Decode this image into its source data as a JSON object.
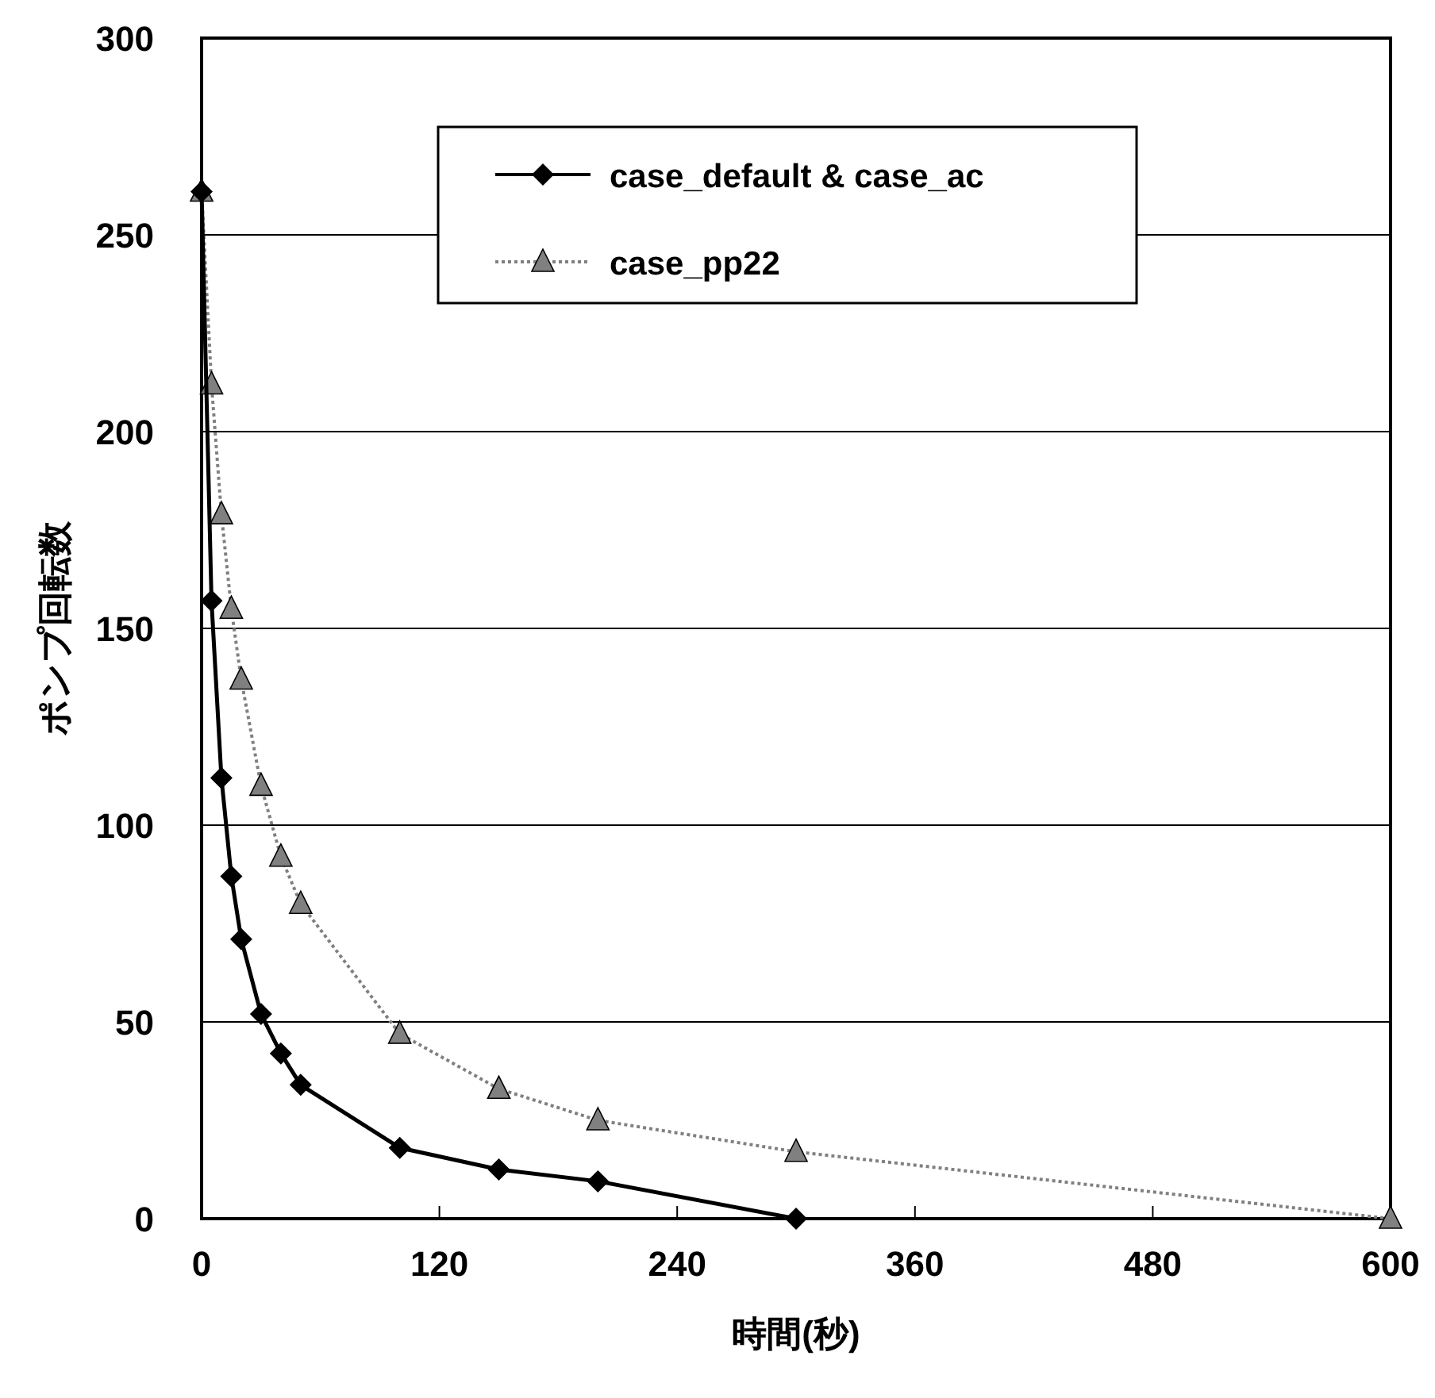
{
  "chart_data": {
    "type": "line",
    "xlabel": "時間(秒)",
    "ylabel": "ポンプ回転数",
    "xlim": [
      0,
      600
    ],
    "xticks": [
      0,
      120,
      240,
      360,
      480,
      600
    ],
    "ylim": [
      0,
      300
    ],
    "yticks": [
      0,
      50,
      100,
      150,
      200,
      250,
      300
    ],
    "grid": "y",
    "legend": "top",
    "series": [
      {
        "name": "case_default & case_ac",
        "color": "#000000",
        "marker": "diamond",
        "line_style": "solid",
        "x": [
          0,
          5,
          10,
          15,
          20,
          30,
          40,
          50,
          100,
          150,
          200,
          300
        ],
        "values": [
          261,
          157,
          112,
          87,
          71,
          52,
          42,
          34,
          18,
          12.5,
          9.5,
          0
        ]
      },
      {
        "name": "case_pp22",
        "color": "#808080",
        "marker": "triangle",
        "line_style": "dotted",
        "x": [
          0,
          5,
          10,
          15,
          20,
          30,
          40,
          50,
          100,
          150,
          200,
          300,
          600
        ],
        "values": [
          261,
          212,
          179,
          155,
          137,
          110,
          92,
          80,
          47,
          33,
          25,
          17,
          0
        ]
      }
    ]
  }
}
